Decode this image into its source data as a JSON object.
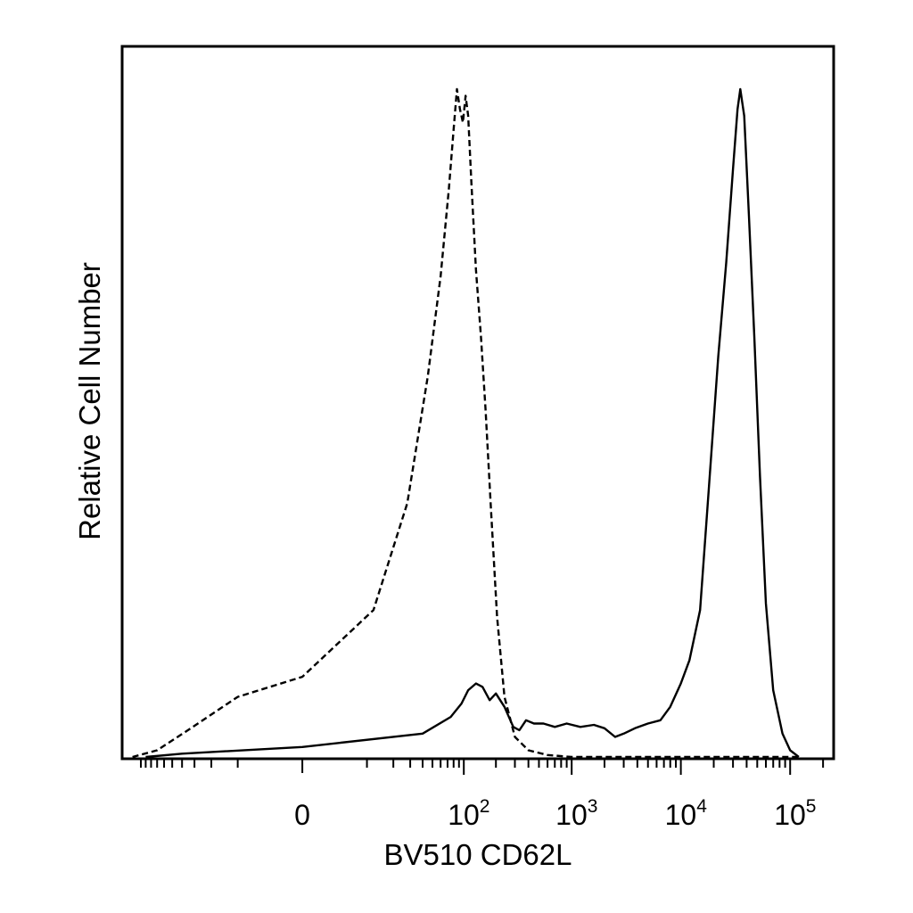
{
  "chart_data": {
    "type": "line",
    "title": "",
    "xlabel": "BV510 CD62L",
    "ylabel": "Relative Cell Number",
    "x_scale": "biexponential",
    "xlim": [
      -150,
      250000
    ],
    "ylim": [
      0,
      100
    ],
    "grid": false,
    "legend": "none",
    "x_tick_labels": [
      {
        "value": 0,
        "base": "0",
        "exp": ""
      },
      {
        "value": 100,
        "base": "10",
        "exp": "2"
      },
      {
        "value": 1000,
        "base": "10",
        "exp": "3"
      },
      {
        "value": 10000,
        "base": "10",
        "exp": "4"
      },
      {
        "value": 100000,
        "base": "10",
        "exp": "5"
      }
    ],
    "series": [
      {
        "style": "dashed",
        "color": "#000000",
        "points": [
          [
            -120,
            0
          ],
          [
            -70,
            1
          ],
          [
            -35,
            4
          ],
          [
            -10,
            9
          ],
          [
            0,
            12
          ],
          [
            12,
            22
          ],
          [
            28,
            38
          ],
          [
            45,
            57
          ],
          [
            60,
            72
          ],
          [
            72,
            85
          ],
          [
            80,
            94
          ],
          [
            86,
            100
          ],
          [
            92,
            97
          ],
          [
            98,
            95
          ],
          [
            104,
            99
          ],
          [
            110,
            96
          ],
          [
            118,
            86
          ],
          [
            130,
            73
          ],
          [
            145,
            63
          ],
          [
            160,
            52
          ],
          [
            180,
            37
          ],
          [
            205,
            21
          ],
          [
            240,
            9
          ],
          [
            300,
            3
          ],
          [
            400,
            1
          ],
          [
            600,
            0.3
          ],
          [
            1000,
            0
          ],
          [
            10000,
            0
          ],
          [
            120000,
            0
          ]
        ]
      },
      {
        "style": "solid",
        "color": "#000000",
        "points": [
          [
            -90,
            0
          ],
          [
            -40,
            0.5
          ],
          [
            0,
            1.5
          ],
          [
            40,
            3.5
          ],
          [
            75,
            6
          ],
          [
            95,
            8
          ],
          [
            110,
            10
          ],
          [
            130,
            11
          ],
          [
            150,
            10.5
          ],
          [
            175,
            8.5
          ],
          [
            200,
            9.5
          ],
          [
            240,
            7.5
          ],
          [
            290,
            4.5
          ],
          [
            330,
            4
          ],
          [
            380,
            5.5
          ],
          [
            450,
            5
          ],
          [
            550,
            5
          ],
          [
            700,
            4.5
          ],
          [
            900,
            5
          ],
          [
            1200,
            4.5
          ],
          [
            1600,
            4.8
          ],
          [
            2000,
            4.3
          ],
          [
            2500,
            3
          ],
          [
            3000,
            3.5
          ],
          [
            3800,
            4.3
          ],
          [
            5000,
            5
          ],
          [
            6500,
            5.5
          ],
          [
            8000,
            7.5
          ],
          [
            10000,
            11
          ],
          [
            12000,
            14.5
          ],
          [
            15000,
            22
          ],
          [
            18000,
            40
          ],
          [
            22000,
            60
          ],
          [
            26000,
            74
          ],
          [
            30000,
            88
          ],
          [
            33000,
            97
          ],
          [
            35000,
            100
          ],
          [
            38000,
            96
          ],
          [
            42000,
            81
          ],
          [
            47000,
            63
          ],
          [
            53000,
            42
          ],
          [
            60000,
            23
          ],
          [
            70000,
            10
          ],
          [
            85000,
            3.5
          ],
          [
            100000,
            1
          ],
          [
            120000,
            0
          ]
        ]
      }
    ]
  }
}
